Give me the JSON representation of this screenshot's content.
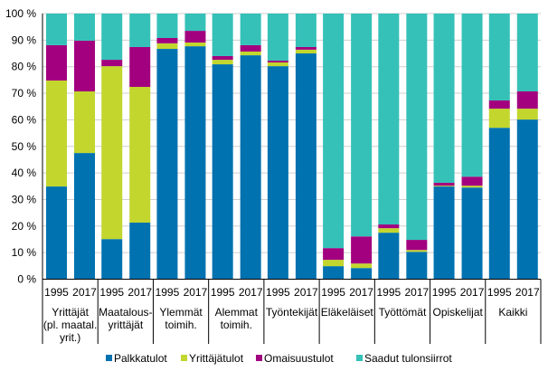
{
  "chart_data": {
    "type": "bar",
    "stacked": true,
    "ylim": [
      0,
      100
    ],
    "yticks": [
      "0 %",
      "10 %",
      "20 %",
      "30 %",
      "40 %",
      "50 %",
      "60 %",
      "70 %",
      "80 %",
      "90 %",
      "100 %"
    ],
    "grid": true,
    "legend_placement": "bottom",
    "groups": [
      {
        "label_lines": [
          "Yrittäjät",
          "(pl. maatal.",
          "yrit.)"
        ],
        "years": [
          "1995",
          "2017"
        ]
      },
      {
        "label_lines": [
          "Maatalous-",
          "yrittäjät"
        ],
        "years": [
          "1995",
          "2017"
        ]
      },
      {
        "label_lines": [
          "Ylemmät",
          "toimih."
        ],
        "years": [
          "1995",
          "2017"
        ]
      },
      {
        "label_lines": [
          "Alemmat",
          "toimih."
        ],
        "years": [
          "1995",
          "2017"
        ]
      },
      {
        "label_lines": [
          "Työntekijät"
        ],
        "years": [
          "1995",
          "2017"
        ]
      },
      {
        "label_lines": [
          "Eläkeläiset"
        ],
        "years": [
          "1995",
          "2017"
        ]
      },
      {
        "label_lines": [
          "Työttömät"
        ],
        "years": [
          "1995",
          "2017"
        ]
      },
      {
        "label_lines": [
          "Opiskelijat"
        ],
        "years": [
          "1995",
          "2017"
        ]
      },
      {
        "label_lines": [
          "Kaikki"
        ],
        "years": [
          "1995",
          "2017"
        ]
      }
    ],
    "series": [
      {
        "name": "Palkkatulot",
        "color": "#0072b0",
        "values": [
          34.9,
          47.5,
          15.1,
          21.3,
          86.7,
          87.7,
          80.9,
          84.3,
          80.2,
          85.0,
          4.9,
          4.2,
          17.5,
          10.3,
          34.9,
          34.5,
          57.0,
          60.1
        ]
      },
      {
        "name": "Yrittäjätulot",
        "color": "#c2d62e",
        "values": [
          39.9,
          23.2,
          65.1,
          51.1,
          2.1,
          1.4,
          1.7,
          1.4,
          1.4,
          1.4,
          2.4,
          1.7,
          1.7,
          0.7,
          0.3,
          0.7,
          7.2,
          4.1
        ]
      },
      {
        "name": "Omaisuustulot",
        "color": "#a3007f",
        "values": [
          13.3,
          19.1,
          2.4,
          15.0,
          2.0,
          4.4,
          1.4,
          2.4,
          0.7,
          1.0,
          4.4,
          10.2,
          1.4,
          3.8,
          1.1,
          3.4,
          3.1,
          6.5
        ]
      },
      {
        "name": "Saadut tulonsiirrot",
        "color": "#35c1b8",
        "values": [
          11.9,
          10.2,
          17.4,
          12.6,
          9.2,
          6.5,
          16.0,
          11.9,
          17.7,
          12.6,
          88.3,
          83.9,
          79.4,
          85.2,
          63.7,
          61.4,
          32.7,
          29.3
        ]
      }
    ]
  }
}
